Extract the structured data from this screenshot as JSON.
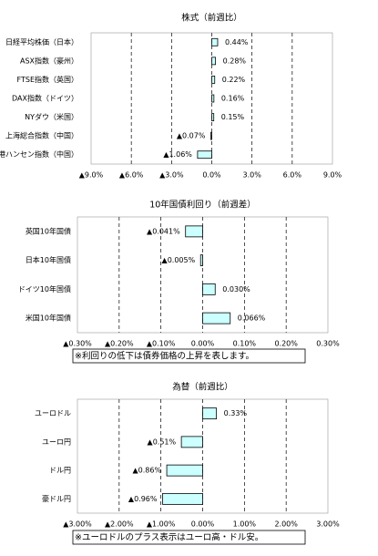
{
  "chart_data": [
    {
      "type": "bar",
      "orientation": "horizontal",
      "title": "株式（前週比）",
      "categories": [
        "日経平均株価（日本）",
        "ASX指数（豪州）",
        "FTSE指数（英国）",
        "DAX指数（ドイツ）",
        "NYダウ（米国）",
        "上海総合指数（中国）",
        "香港ハンセン指数（中国）"
      ],
      "values": [
        0.44,
        0.28,
        0.22,
        0.16,
        0.15,
        -0.07,
        -1.06
      ],
      "value_labels": [
        "0.44%",
        "0.28%",
        "0.22%",
        "0.16%",
        "0.15%",
        "▲0.07%",
        "▲1.06%"
      ],
      "color": "#ccffff",
      "negative_label_color": "#ff0000",
      "grid": true,
      "xlim": [
        -9,
        9
      ],
      "xticks": [
        {
          "value": -9,
          "label": "▲9.0%"
        },
        {
          "value": -6,
          "label": "▲6.0%"
        },
        {
          "value": -3,
          "label": "▲3.0%"
        },
        {
          "value": 0,
          "label": "0.0%"
        },
        {
          "value": 3,
          "label": "3.0%"
        },
        {
          "value": 6,
          "label": "6.0%"
        },
        {
          "value": 9,
          "label": "9.0%"
        }
      ]
    },
    {
      "type": "bar",
      "orientation": "horizontal",
      "title": "10年国債利回り（前週差）",
      "categories": [
        "英国10年国債",
        "日本10年国債",
        "ドイツ10年国債",
        "米国10年国債"
      ],
      "values": [
        -0.041,
        -0.005,
        0.03,
        0.066
      ],
      "value_labels": [
        "▲0.041%",
        "▲0.005%",
        "0.030%",
        "0.066%"
      ],
      "color": "#ccffff",
      "negative_label_color": "#ff0000",
      "grid": true,
      "xlim": [
        -0.3,
        0.3
      ],
      "xticks": [
        {
          "value": -0.3,
          "label": "▲0.30%"
        },
        {
          "value": -0.2,
          "label": "▲0.20%"
        },
        {
          "value": -0.1,
          "label": "▲0.10%"
        },
        {
          "value": 0,
          "label": "0.00%"
        },
        {
          "value": 0.1,
          "label": "0.10%"
        },
        {
          "value": 0.2,
          "label": "0.20%"
        },
        {
          "value": 0.3,
          "label": "0.30%"
        }
      ],
      "note": "※利回りの低下は債券価格の上昇を表します。"
    },
    {
      "type": "bar",
      "orientation": "horizontal",
      "title": "為替（前週比）",
      "categories": [
        "ユーロドル",
        "ユーロ円",
        "ドル円",
        "豪ドル円"
      ],
      "values": [
        0.33,
        -0.51,
        -0.86,
        -0.96
      ],
      "value_labels": [
        "0.33%",
        "▲0.51%",
        "▲0.86%",
        "▲0.96%"
      ],
      "color": "#ccffff",
      "negative_label_color": "#ff0000",
      "grid": true,
      "xlim": [
        -3,
        3
      ],
      "xticks": [
        {
          "value": -3,
          "label": "▲3.00%"
        },
        {
          "value": -2,
          "label": "▲2.00%"
        },
        {
          "value": -1,
          "label": "▲1.00%"
        },
        {
          "value": 0,
          "label": "0.00%"
        },
        {
          "value": 1,
          "label": "1.00%"
        },
        {
          "value": 2,
          "label": "2.00%"
        },
        {
          "value": 3,
          "label": "3.00%"
        }
      ],
      "note": "※ユーロドルのプラス表示はユーロ高・ドル安。"
    }
  ]
}
